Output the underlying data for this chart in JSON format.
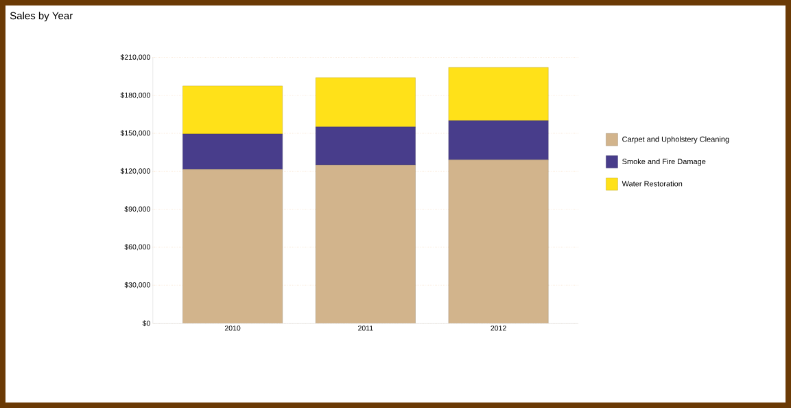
{
  "chart_data": {
    "type": "bar",
    "title": "Sales by Year",
    "stacked": true,
    "categories": [
      "2010",
      "2011",
      "2012"
    ],
    "series": [
      {
        "name": "Carpet and Upholstery Cleaning",
        "color": "#d2b48c",
        "values": [
          121500,
          125000,
          129000
        ]
      },
      {
        "name": "Smoke and Fire Damage",
        "color": "#483d8b",
        "values": [
          28000,
          30000,
          31000
        ]
      },
      {
        "name": "Water Restoration",
        "color": "#ffe119",
        "values": [
          38000,
          39000,
          42000
        ]
      }
    ],
    "ylim": [
      0,
      210000
    ],
    "yticks": [
      {
        "value": 0,
        "label": "$0"
      },
      {
        "value": 30000,
        "label": "$30,000"
      },
      {
        "value": 60000,
        "label": "$60,000"
      },
      {
        "value": 90000,
        "label": "$90,000"
      },
      {
        "value": 120000,
        "label": "$120,000"
      },
      {
        "value": 150000,
        "label": "$150,000"
      },
      {
        "value": 180000,
        "label": "$180,000"
      },
      {
        "value": 210000,
        "label": "$210,000"
      }
    ],
    "grid": "y",
    "legend": "right"
  }
}
